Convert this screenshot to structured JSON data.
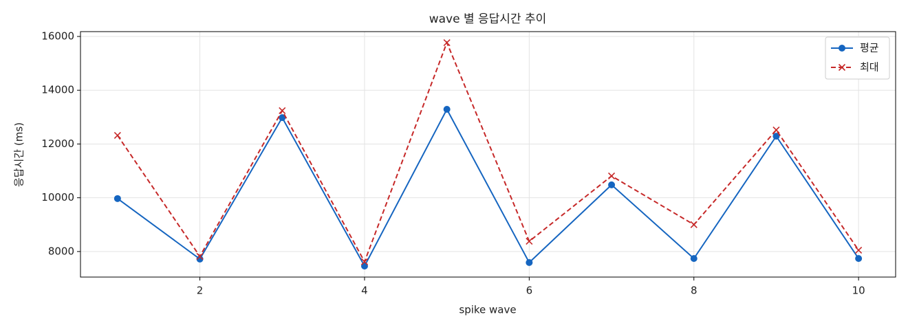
{
  "chart_data": {
    "type": "line",
    "title": "wave 별 응답시간 추이",
    "xlabel": "spike wave",
    "ylabel": "응답시간 (ms)",
    "x": [
      1,
      2,
      3,
      4,
      5,
      6,
      7,
      8,
      9,
      10
    ],
    "series": [
      {
        "name": "평균",
        "color": "#1565c0",
        "marker": "circle",
        "linestyle": "solid",
        "values": [
          9970,
          7720,
          12980,
          7460,
          13290,
          7590,
          10480,
          7740,
          12290,
          7740
        ]
      },
      {
        "name": "최대",
        "color": "#c62828",
        "marker": "x",
        "linestyle": "dashed",
        "values": [
          12320,
          7820,
          13240,
          7620,
          15770,
          8380,
          10810,
          9000,
          12520,
          8050
        ]
      }
    ],
    "xlim": [
      0.55,
      10.45
    ],
    "ylim": [
      7050,
      16180
    ],
    "xticks": [
      2,
      4,
      6,
      8,
      10
    ],
    "yticks": [
      8000,
      10000,
      12000,
      14000,
      16000
    ],
    "grid": true,
    "legend": "upper right"
  }
}
